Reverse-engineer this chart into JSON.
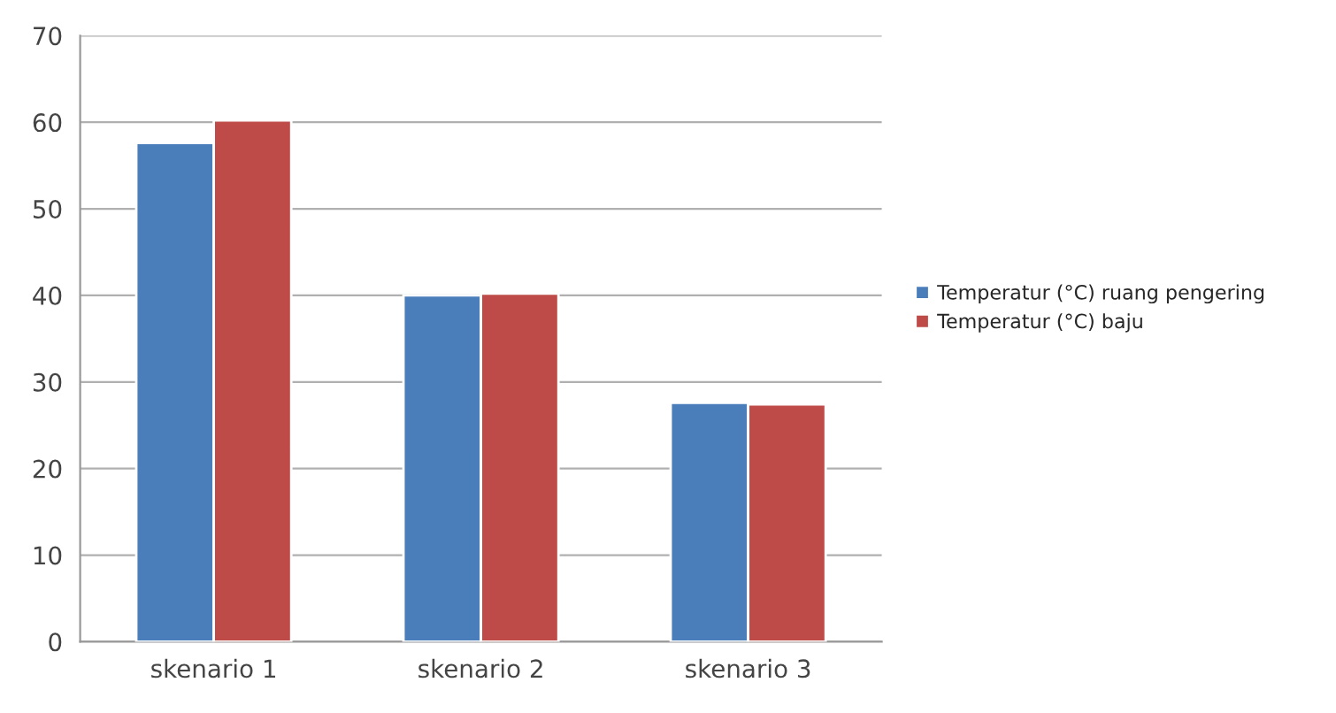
{
  "chart_data": {
    "type": "bar",
    "categories": [
      "skenario 1",
      "skenario 2",
      "skenario 3"
    ],
    "series": [
      {
        "name": "Temperatur (°C) ruang pengering",
        "color": "#4a7ebb",
        "values": [
          57.6,
          40.0,
          27.6
        ]
      },
      {
        "name": "Temperatur (°C) baju",
        "color": "#be4b48",
        "values": [
          60.2,
          40.2,
          27.4
        ]
      }
    ],
    "ylim": [
      0,
      70
    ],
    "yticks": [
      0,
      10,
      20,
      30,
      40,
      50,
      60,
      70
    ],
    "grid": "y",
    "legend": "right"
  }
}
